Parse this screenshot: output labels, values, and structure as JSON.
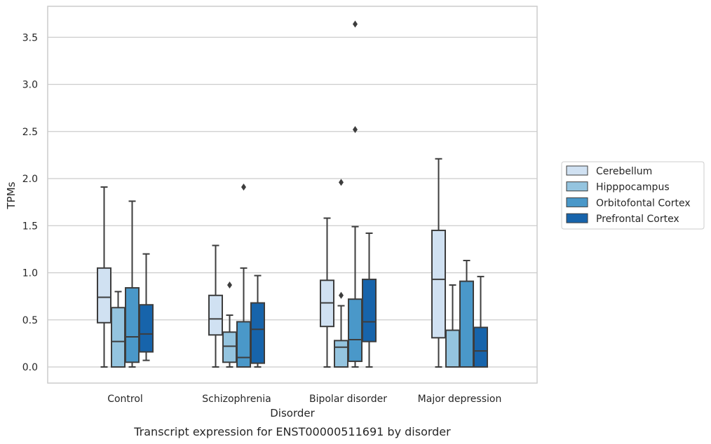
{
  "caption": "Transcript expression for ENST00000511691 by disorder",
  "chart_data": {
    "type": "box",
    "xlabel": "Disorder",
    "ylabel": "TPMs",
    "ylim": [
      -0.18,
      3.86
    ],
    "yticks": [
      0.0,
      0.5,
      1.0,
      1.5,
      2.0,
      2.5,
      3.0,
      3.5
    ],
    "ytick_labels": [
      "0.0",
      "0.5",
      "1.0",
      "1.5",
      "2.0",
      "2.5",
      "3.0",
      "3.5"
    ],
    "grid": "horizontal",
    "legend_position": "right",
    "categories": [
      "Control",
      "Schizophrenia",
      "Bipolar disorder",
      "Major depression"
    ],
    "series": [
      {
        "name": "Cerebellum",
        "color": "#d0e1f2",
        "boxes": [
          {
            "whislo": 0.0,
            "q1": 0.47,
            "med": 0.74,
            "q3": 1.05,
            "whishi": 1.91,
            "fliers": []
          },
          {
            "whislo": 0.0,
            "q1": 0.34,
            "med": 0.51,
            "q3": 0.76,
            "whishi": 1.29,
            "fliers": []
          },
          {
            "whislo": 0.0,
            "q1": 0.43,
            "med": 0.68,
            "q3": 0.92,
            "whishi": 1.58,
            "fliers": []
          },
          {
            "whislo": 0.0,
            "q1": 0.31,
            "med": 0.93,
            "q3": 1.45,
            "whishi": 2.21,
            "fliers": []
          }
        ]
      },
      {
        "name": "Hipppocampus",
        "color": "#94c4df",
        "boxes": [
          {
            "whislo": 0.0,
            "q1": 0.0,
            "med": 0.27,
            "q3": 0.63,
            "whishi": 0.8,
            "fliers": []
          },
          {
            "whislo": 0.0,
            "q1": 0.05,
            "med": 0.22,
            "q3": 0.37,
            "whishi": 0.55,
            "fliers": [
              0.87
            ]
          },
          {
            "whislo": 0.0,
            "q1": 0.0,
            "med": 0.21,
            "q3": 0.28,
            "whishi": 0.65,
            "fliers": [
              0.76,
              1.96
            ]
          },
          {
            "whislo": 0.0,
            "q1": 0.0,
            "med": 0.0,
            "q3": 0.39,
            "whishi": 0.87,
            "fliers": []
          }
        ]
      },
      {
        "name": "Orbitofontal Cortex",
        "color": "#4a98c9",
        "boxes": [
          {
            "whislo": 0.0,
            "q1": 0.05,
            "med": 0.32,
            "q3": 0.84,
            "whishi": 1.76,
            "fliers": []
          },
          {
            "whislo": 0.0,
            "q1": 0.0,
            "med": 0.1,
            "q3": 0.48,
            "whishi": 1.05,
            "fliers": [
              1.91
            ]
          },
          {
            "whislo": 0.0,
            "q1": 0.06,
            "med": 0.29,
            "q3": 0.72,
            "whishi": 1.49,
            "fliers": [
              2.52,
              3.64
            ]
          },
          {
            "whislo": 0.0,
            "q1": 0.0,
            "med": 0.0,
            "q3": 0.91,
            "whishi": 1.13,
            "fliers": []
          }
        ]
      },
      {
        "name": "Prefrontal Cortex",
        "color": "#1764ab",
        "boxes": [
          {
            "whislo": 0.07,
            "q1": 0.16,
            "med": 0.35,
            "q3": 0.66,
            "whishi": 1.2,
            "fliers": []
          },
          {
            "whislo": 0.0,
            "q1": 0.04,
            "med": 0.4,
            "q3": 0.68,
            "whishi": 0.97,
            "fliers": []
          },
          {
            "whislo": 0.0,
            "q1": 0.27,
            "med": 0.48,
            "q3": 0.93,
            "whishi": 1.42,
            "fliers": []
          },
          {
            "whislo": 0.0,
            "q1": 0.0,
            "med": 0.17,
            "q3": 0.42,
            "whishi": 0.96,
            "fliers": []
          }
        ]
      }
    ]
  }
}
